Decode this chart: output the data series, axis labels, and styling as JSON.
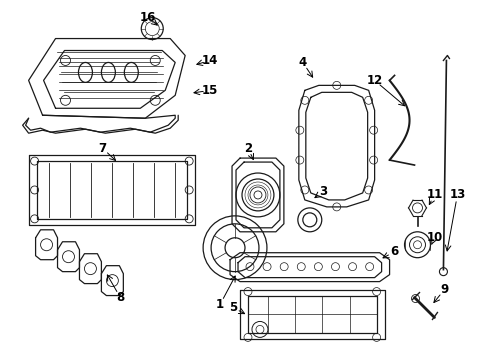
{
  "background_color": "#ffffff",
  "line_color": "#1a1a1a",
  "text_color": "#000000",
  "label_fontsize": 8.5,
  "fig_width": 4.89,
  "fig_height": 3.6,
  "dpi": 100
}
